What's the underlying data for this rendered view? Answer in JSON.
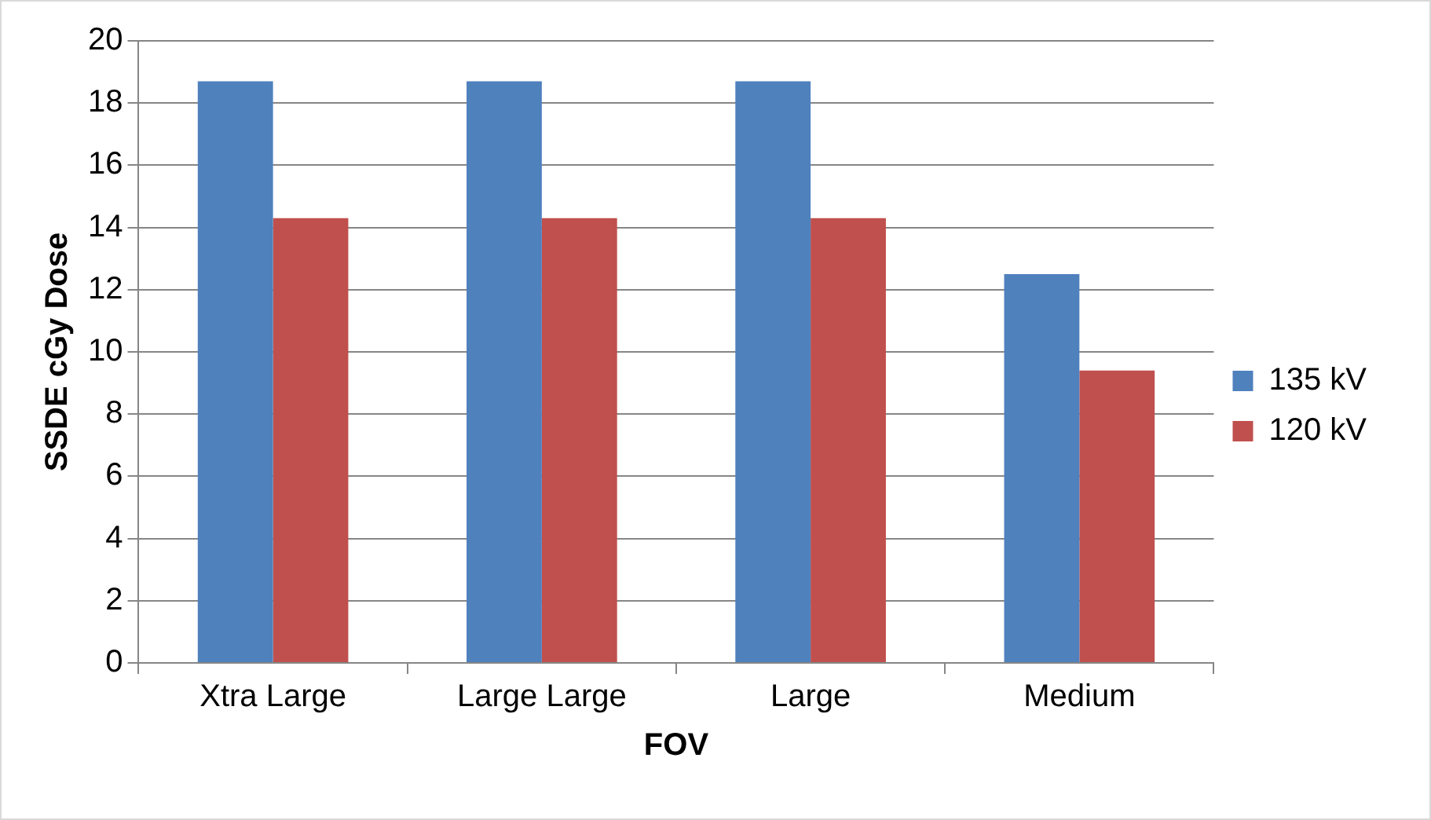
{
  "chart_data": {
    "type": "bar",
    "xlabel": "FOV",
    "ylabel": "SSDE cGy Dose",
    "categories": [
      "Xtra Large",
      "Large Large",
      "Large",
      "Medium"
    ],
    "series": [
      {
        "name": "135 kV",
        "color": "#4f81bd",
        "values": [
          18.7,
          18.7,
          18.7,
          12.5
        ]
      },
      {
        "name": "120 kV",
        "color": "#c0504d",
        "values": [
          14.3,
          14.3,
          14.3,
          9.4
        ]
      }
    ],
    "ylim": [
      0,
      20
    ],
    "yticks": [
      0,
      2,
      4,
      6,
      8,
      10,
      12,
      14,
      16,
      18,
      20
    ],
    "grid": "y",
    "legend": "right"
  }
}
